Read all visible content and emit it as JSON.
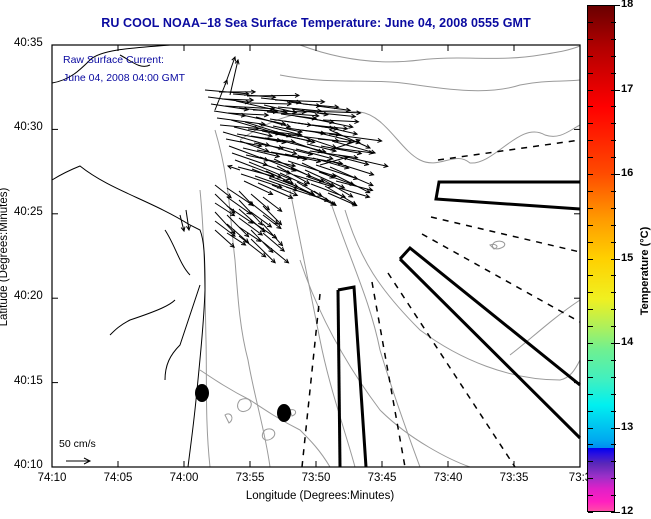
{
  "title": "RU COOL  NOAA–18  Sea Surface Temperature:  June 04, 2008 0555 GMT",
  "legend": {
    "line1": "Raw Surface Current:",
    "line2": "June 04, 2008 04:00 GMT",
    "scale_label": "50 cm/s"
  },
  "axes": {
    "xlabel": "Longitude (Degrees:Minutes)",
    "ylabel": "Latitude (Degrees:Minutes)",
    "xticks": [
      "74:10",
      "74:05",
      "74:00",
      "73:55",
      "73:50",
      "73:45",
      "73:40",
      "73:35",
      "73:3"
    ],
    "yticks": [
      "40:35",
      "40:30",
      "40:25",
      "40:20",
      "40:15",
      "40:10"
    ]
  },
  "colorbar": {
    "title": "Temperature (°C)",
    "ticks": [
      "18",
      "17",
      "16",
      "15",
      "14",
      "13",
      "12"
    ],
    "range": [
      12,
      18
    ]
  },
  "colors": {
    "title_text": "#0a0aa0",
    "coastline": "#000000",
    "bathymetry": "#999999"
  },
  "chart_data": {
    "type": "map",
    "title": "RU COOL  NOAA-18  Sea Surface Temperature:  June 04, 2008 0555 GMT",
    "xlabel": "Longitude (Degrees:Minutes)",
    "ylabel": "Latitude (Degrees:Minutes)",
    "xlim_deg_min": [
      "74:10",
      "73:30"
    ],
    "ylim_deg_min": [
      "40:10",
      "40:35"
    ],
    "layers": [
      "coastline",
      "bathymetry contours",
      "raw surface current vectors",
      "shipping lanes",
      "buoys"
    ],
    "vector_scale": "50 cm/s"
  }
}
